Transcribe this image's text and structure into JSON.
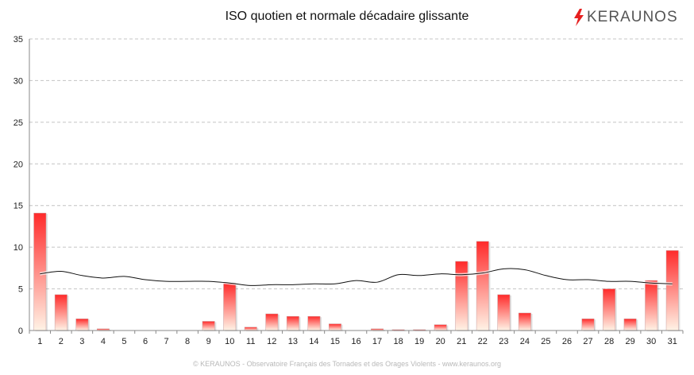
{
  "brand": {
    "name": "KERAUNOS",
    "accent": "#e62020"
  },
  "footer": "© KERAUNOS - Observatoire Français des Tornades et des Orages Violents - www.keraunos.org",
  "chart_data": {
    "type": "bar",
    "title": "ISO quotien et normale décadaire glissante",
    "xlabel": "",
    "ylabel": "",
    "ylim": [
      0,
      35
    ],
    "yticks": [
      0,
      5,
      10,
      15,
      20,
      25,
      30,
      35
    ],
    "grid": true,
    "categories": [
      "1",
      "2",
      "3",
      "4",
      "5",
      "6",
      "7",
      "8",
      "9",
      "10",
      "11",
      "12",
      "13",
      "14",
      "15",
      "16",
      "17",
      "18",
      "19",
      "20",
      "21",
      "22",
      "23",
      "24",
      "25",
      "26",
      "27",
      "28",
      "29",
      "30",
      "31"
    ],
    "series": [
      {
        "type": "bar",
        "values": [
          14.1,
          4.3,
          1.4,
          0.2,
          0.0,
          0.0,
          0.0,
          0.0,
          1.1,
          5.7,
          0.4,
          2.0,
          1.7,
          1.7,
          0.8,
          0.0,
          0.2,
          0.1,
          0.1,
          0.7,
          8.3,
          10.7,
          4.3,
          2.1,
          0.0,
          0.0,
          1.4,
          5.0,
          1.4,
          6.0,
          9.6
        ],
        "color": "#ff3030"
      },
      {
        "type": "line",
        "values": [
          6.8,
          7.1,
          6.6,
          6.3,
          6.5,
          6.1,
          5.9,
          5.9,
          5.9,
          5.7,
          5.4,
          5.5,
          5.5,
          5.6,
          5.6,
          6.0,
          5.8,
          6.7,
          6.6,
          6.8,
          6.7,
          6.9,
          7.4,
          7.3,
          6.6,
          6.1,
          6.1,
          5.9,
          5.9,
          5.7,
          5.6
        ],
        "color": "#111111"
      }
    ]
  }
}
